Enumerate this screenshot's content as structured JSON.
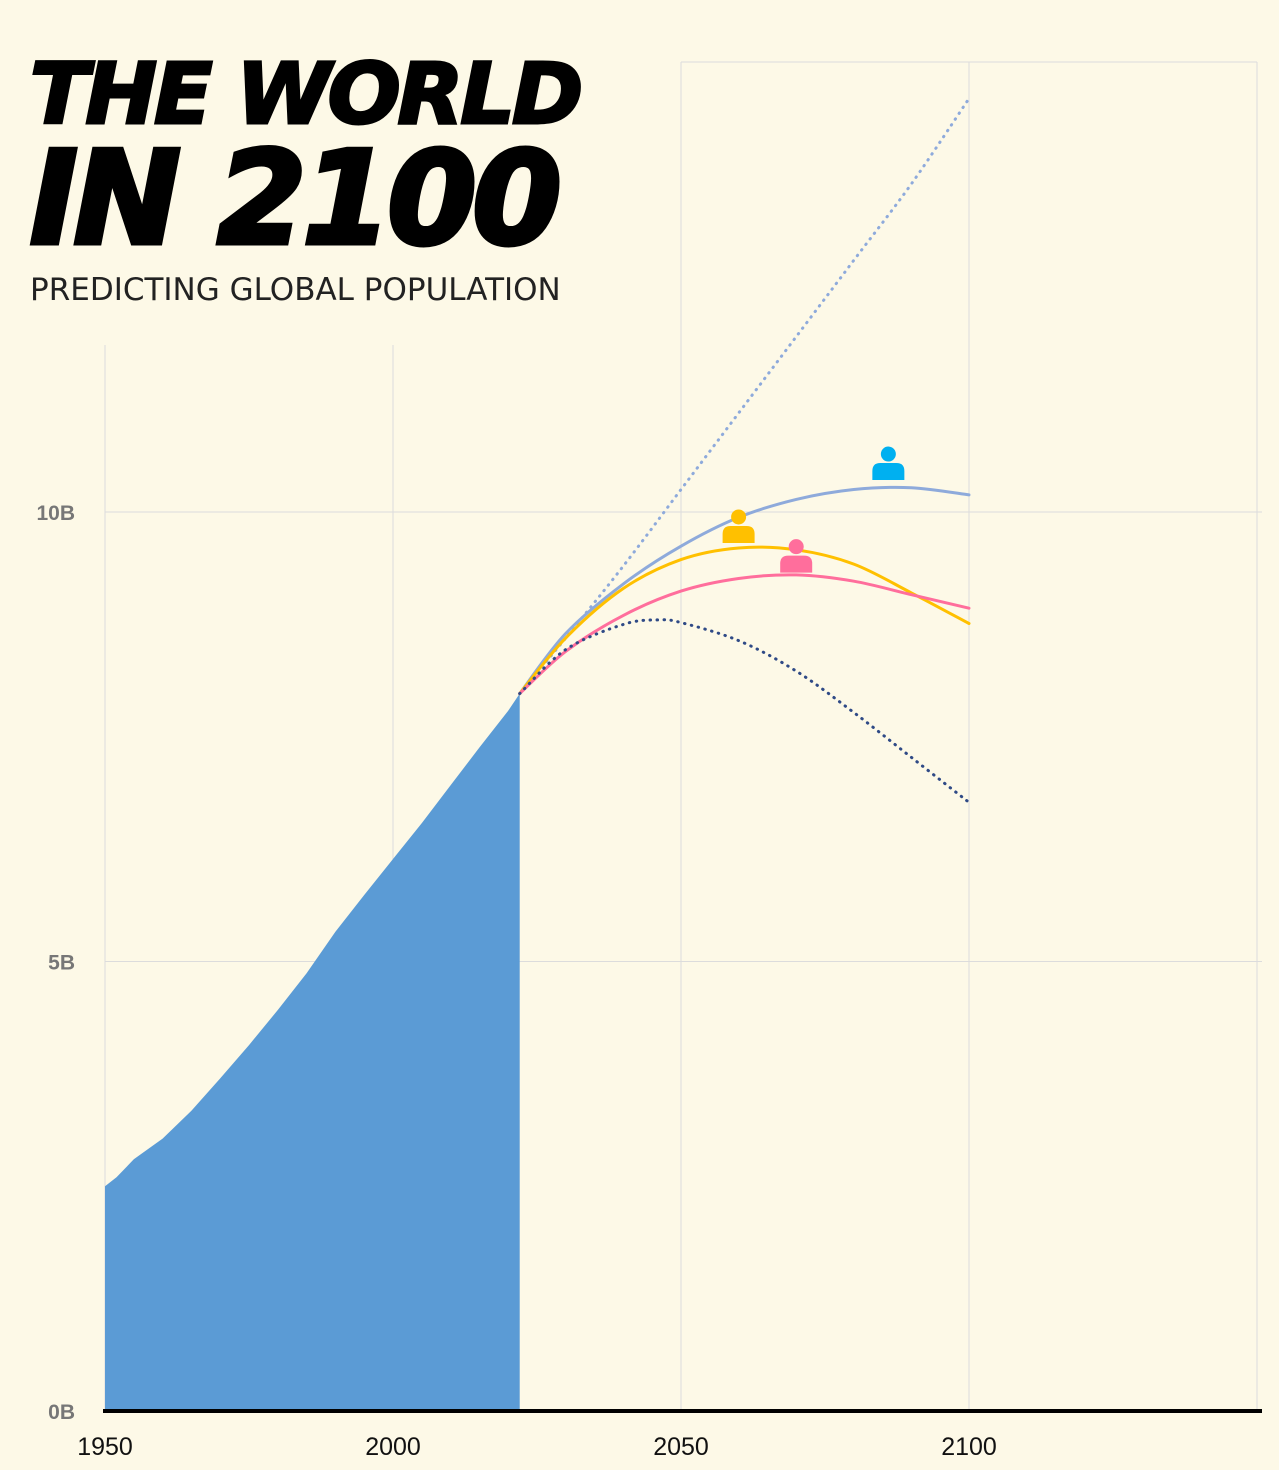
{
  "title_line1": "THE WORLD",
  "title_line2": "IN 2100",
  "subtitle": "PREDICTING GLOBAL POPULATION",
  "chart_data": {
    "type": "area",
    "title": "THE WORLD IN 2100",
    "subtitle": "PREDICTING GLOBAL POPULATION",
    "xlabel": "",
    "ylabel": "",
    "x_ticks": [
      1950,
      2000,
      2050,
      2100
    ],
    "y_ticks": [
      0,
      5,
      10
    ],
    "y_tick_labels": [
      "0B",
      "5B",
      "10B"
    ],
    "xlim": [
      1950,
      2150
    ],
    "ylim": [
      0,
      11.8
    ],
    "grid": true,
    "historical": {
      "x": [
        1950,
        1952,
        1955,
        1960,
        1965,
        1970,
        1975,
        1980,
        1985,
        1990,
        1995,
        2000,
        2005,
        2010,
        2015,
        2020,
        2022
      ],
      "y": [
        2.5,
        2.6,
        2.8,
        3.03,
        3.34,
        3.7,
        4.07,
        4.46,
        4.87,
        5.33,
        5.74,
        6.14,
        6.54,
        6.96,
        7.38,
        7.79,
        7.98
      ]
    },
    "projections": [
      {
        "color": "#8eaadb",
        "style": "dotted",
        "x": [
          2022,
          2030,
          2040,
          2050,
          2060,
          2070,
          2080,
          2090,
          2100
        ],
        "y": [
          7.98,
          8.6,
          9.4,
          10.25,
          11.1,
          11.95,
          12.8,
          13.65,
          14.6
        ]
      },
      {
        "color": "#8eaadb",
        "style": "solid",
        "x": [
          2022,
          2030,
          2040,
          2050,
          2060,
          2070,
          2080,
          2090,
          2100
        ],
        "y": [
          7.98,
          8.65,
          9.2,
          9.62,
          9.94,
          10.14,
          10.25,
          10.27,
          10.19
        ]
      },
      {
        "color": "#ffc000",
        "style": "solid",
        "x": [
          2022,
          2030,
          2040,
          2050,
          2060,
          2070,
          2080,
          2090,
          2100
        ],
        "y": [
          7.98,
          8.6,
          9.15,
          9.47,
          9.6,
          9.58,
          9.42,
          9.1,
          8.76
        ]
      },
      {
        "color": "#ff6e9c",
        "style": "solid",
        "x": [
          2022,
          2030,
          2040,
          2050,
          2060,
          2070,
          2080,
          2090,
          2100
        ],
        "y": [
          7.98,
          8.45,
          8.85,
          9.12,
          9.26,
          9.3,
          9.23,
          9.08,
          8.93
        ]
      },
      {
        "color": "#2f4a86",
        "style": "dotted",
        "x": [
          2022,
          2030,
          2040,
          2046,
          2050,
          2060,
          2070,
          2080,
          2090,
          2100
        ],
        "y": [
          7.98,
          8.47,
          8.75,
          8.8,
          8.77,
          8.57,
          8.23,
          7.77,
          7.27,
          6.77
        ]
      }
    ],
    "peak_markers": [
      {
        "year": 2086,
        "value": 10.4,
        "color": "#00b0f0"
      },
      {
        "year": 2060,
        "value": 9.7,
        "color": "#ffc000"
      },
      {
        "year": 2070,
        "value": 9.37,
        "color": "#ff6e9c"
      }
    ],
    "area_color": "#5b9bd5"
  }
}
